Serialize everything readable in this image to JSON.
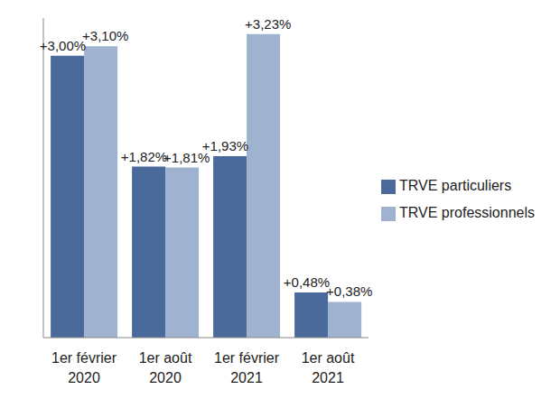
{
  "chart_data": {
    "type": "bar",
    "categories": [
      "1er février 2020",
      "1er août 2020",
      "1er février 2021",
      "1er août 2021"
    ],
    "series": [
      {
        "name": "TRVE particuliers",
        "color": "#4a6a9b",
        "values": [
          3.0,
          1.82,
          1.93,
          0.48
        ],
        "value_labels": [
          "+3,00%",
          "+1,82%",
          "+1,93%",
          "+0,48%"
        ]
      },
      {
        "name": "TRVE professionnels",
        "color": "#9fb2d0",
        "values": [
          3.1,
          1.81,
          3.23,
          0.38
        ],
        "value_labels": [
          "+3,10%",
          "+1,81%",
          "+3,23%",
          "+0,38%"
        ]
      }
    ],
    "ylim": [
      0,
      3.4
    ],
    "grid": false,
    "legend": "right",
    "data_labels": true,
    "tick_labels": "x"
  }
}
